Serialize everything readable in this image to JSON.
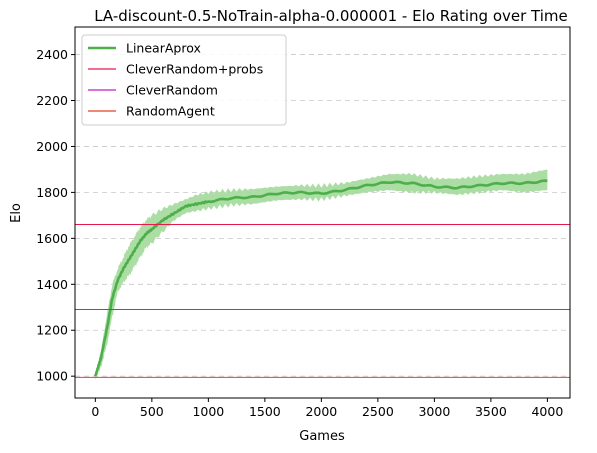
{
  "chart_data": {
    "type": "line",
    "title": "LA-discount-0.5-NoTrain-alpha-0.000001 - Elo Rating over Time",
    "xlabel": "Games",
    "ylabel": "Elo",
    "xlim": [
      -180,
      4200
    ],
    "ylim": [
      905,
      2520
    ],
    "xticks": [
      0,
      500,
      1000,
      1500,
      2000,
      2500,
      3000,
      3500,
      4000
    ],
    "xtick_labels": [
      "0",
      "500",
      "1000",
      "1500",
      "2000",
      "2500",
      "3000",
      "3500",
      "4000"
    ],
    "yticks": [
      1000,
      1200,
      1400,
      1600,
      1800,
      2000,
      2200,
      2400
    ],
    "ytick_labels": [
      "1000",
      "1200",
      "1400",
      "1600",
      "1800",
      "2000",
      "2200",
      "2400"
    ],
    "grid": {
      "y": true,
      "x": false,
      "style": "dashed"
    },
    "legend": {
      "placement": "top-left"
    },
    "series": [
      {
        "name": "LinearAprox",
        "color": "#4daf4a",
        "band_color": "#a6dba0",
        "x": [
          0,
          25,
          50,
          100,
          150,
          200,
          250,
          300,
          350,
          400,
          450,
          500,
          600,
          700,
          800,
          900,
          1000,
          1200,
          1400,
          1600,
          1800,
          2000,
          2200,
          2400,
          2600,
          2800,
          3000,
          3200,
          3400,
          3600,
          3800,
          4000
        ],
        "mean": [
          1000,
          1040,
          1080,
          1200,
          1340,
          1420,
          1470,
          1510,
          1550,
          1590,
          1620,
          1640,
          1680,
          1710,
          1740,
          1750,
          1760,
          1775,
          1780,
          1795,
          1800,
          1795,
          1810,
          1830,
          1845,
          1840,
          1825,
          1820,
          1830,
          1840,
          1840,
          1850
        ],
        "lower": [
          990,
          1015,
          1040,
          1130,
          1260,
          1370,
          1410,
          1440,
          1480,
          1520,
          1560,
          1580,
          1630,
          1680,
          1710,
          1720,
          1730,
          1745,
          1750,
          1765,
          1770,
          1770,
          1785,
          1800,
          1810,
          1800,
          1800,
          1790,
          1800,
          1810,
          1800,
          1810
        ],
        "upper": [
          1010,
          1060,
          1110,
          1260,
          1400,
          1470,
          1520,
          1570,
          1610,
          1650,
          1680,
          1700,
          1730,
          1750,
          1770,
          1790,
          1800,
          1810,
          1815,
          1825,
          1830,
          1830,
          1840,
          1860,
          1880,
          1880,
          1860,
          1860,
          1870,
          1880,
          1880,
          1900
        ]
      },
      {
        "name": "CleverRandom+probs",
        "color": "#e6194b",
        "constant": 1660
      },
      {
        "name": "CleverRandom",
        "color": "#c020c0",
        "constant": 1290
      },
      {
        "name": "RandomAgent",
        "color": "#e8402a",
        "constant": 995
      }
    ]
  }
}
